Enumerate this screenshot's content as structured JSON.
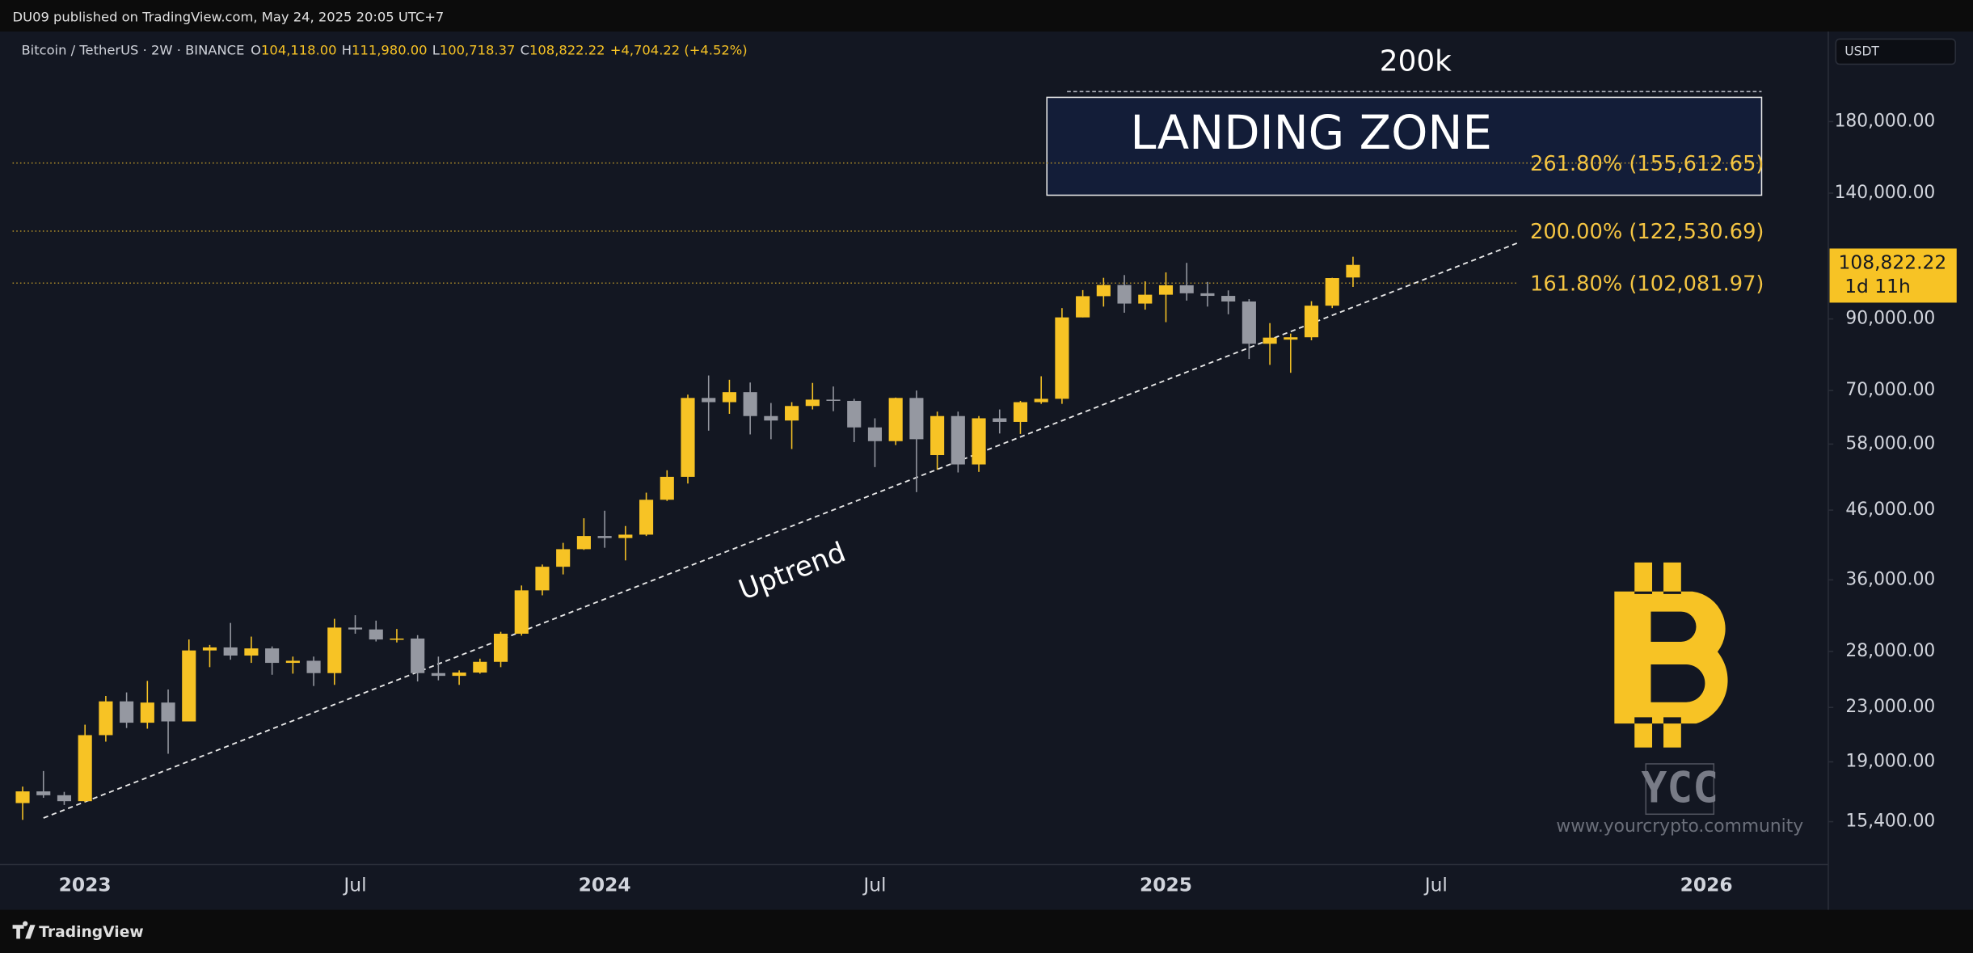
{
  "header": {
    "publisher": "DU09 published on TradingView.com, May 24, 2025 20:05 UTC+7",
    "brand": "TradingView"
  },
  "chart_data": {
    "type": "candlestick",
    "symbol": "Bitcoin / TetherUS · 2W · BINANCE",
    "ohlc_header": [
      [
        "O",
        "104,118.00"
      ],
      [
        "H",
        "111,980.00"
      ],
      [
        "L",
        "100,718.37"
      ],
      [
        "C",
        "108,822.22"
      ]
    ],
    "change": "+4,704.22 (+4.52%)",
    "currency": "USDT",
    "categories": [
      null,
      null,
      null,
      "2023",
      null,
      null,
      null,
      null,
      null,
      null,
      null,
      null,
      null,
      null,
      null,
      null,
      "Jul",
      null,
      null,
      null,
      null,
      null,
      null,
      null,
      null,
      null,
      null,
      null,
      "2024",
      null,
      null,
      null,
      null,
      null,
      null,
      null,
      null,
      null,
      null,
      null,
      null,
      "Jul",
      null,
      null,
      null,
      null,
      null,
      null,
      null,
      null,
      null,
      null,
      null,
      null,
      null,
      "2025",
      null,
      null,
      null,
      null,
      null,
      null,
      null,
      null,
      null,
      null,
      null,
      null,
      "Jul",
      null,
      null,
      null,
      null,
      null,
      null,
      null,
      null,
      null,
      null,
      null,
      null,
      "2026",
      null,
      null,
      null
    ],
    "open": [
      16440,
      17130,
      16900,
      16550,
      20870,
      23500,
      21800,
      23400,
      21900,
      28100,
      28400,
      27600,
      28300,
      26900,
      27100,
      25950,
      30450,
      30250,
      29200,
      29300,
      25950,
      25700,
      26000,
      27000,
      29800,
      34700,
      37700,
      40100,
      42000,
      41700,
      42200,
      47700,
      51700,
      68200,
      67200,
      69600,
      64000,
      63000,
      66300,
      67800,
      67500,
      61500,
      58600,
      68200,
      55800,
      64000,
      54000,
      63500,
      62700,
      67200,
      68000,
      90500,
      97500,
      101400,
      95000,
      98000,
      101300,
      98500,
      97600,
      95700,
      82500,
      83700,
      84400,
      94300,
      104118,
      null,
      null,
      null,
      null,
      null,
      null,
      null,
      null,
      null,
      null,
      null,
      null,
      null,
      null,
      null,
      null,
      null,
      null,
      null,
      null
    ],
    "high": [
      17420,
      18400,
      17100,
      21650,
      23950,
      24250,
      25250,
      24500,
      29200,
      28650,
      30950,
      29500,
      28500,
      27500,
      27500,
      31400,
      31800,
      31200,
      30300,
      29650,
      27500,
      26200,
      27300,
      30000,
      35300,
      38000,
      41000,
      44700,
      45900,
      43500,
      48900,
      52900,
      69000,
      73800,
      72700,
      72000,
      67000,
      67200,
      71900,
      71000,
      68000,
      63500,
      68300,
      70000,
      65000,
      65000,
      64000,
      65500,
      67500,
      73600,
      93500,
      99600,
      104000,
      105000,
      102700,
      106000,
      109600,
      102500,
      99500,
      96500,
      88700,
      85500,
      95800,
      104000,
      111980,
      null,
      null,
      null,
      null,
      null,
      null,
      null,
      null,
      null,
      null,
      null,
      null,
      null,
      null,
      null,
      null,
      null,
      null,
      null,
      null
    ],
    "low": [
      15500,
      16750,
      16330,
      16500,
      20400,
      21400,
      21350,
      19550,
      21900,
      26500,
      27200,
      26900,
      25800,
      25900,
      24800,
      24900,
      29800,
      29000,
      28900,
      25200,
      25300,
      24900,
      25900,
      26500,
      29600,
      34100,
      36700,
      40000,
      40300,
      38550,
      42000,
      47500,
      50500,
      60800,
      64500,
      60000,
      59000,
      57000,
      65500,
      65100,
      58400,
      53500,
      57800,
      49000,
      53000,
      52500,
      52600,
      60200,
      60100,
      66800,
      66800,
      90500,
      94000,
      92000,
      93000,
      89000,
      96000,
      94000,
      91500,
      78200,
      76600,
      74500,
      83500,
      93500,
      100718.37,
      null,
      null,
      null,
      null,
      null,
      null,
      null,
      null,
      null,
      null,
      null,
      null,
      null,
      null,
      null,
      null,
      null,
      null,
      null,
      null
    ],
    "close": [
      17130,
      16900,
      16550,
      20870,
      23500,
      21800,
      23400,
      21900,
      28100,
      28400,
      27600,
      28300,
      26900,
      27100,
      25950,
      30450,
      30250,
      29200,
      29300,
      25950,
      25700,
      26000,
      27000,
      29800,
      34700,
      37700,
      40100,
      42000,
      41700,
      42200,
      47700,
      51700,
      68200,
      67200,
      69600,
      64000,
      63000,
      66300,
      67800,
      67500,
      61500,
      58600,
      68200,
      59000,
      64000,
      54000,
      63500,
      62700,
      67200,
      68000,
      90500,
      97500,
      101400,
      95000,
      98000,
      101300,
      98500,
      97600,
      95700,
      82500,
      84300,
      84400,
      94300,
      103900,
      108822.22,
      null,
      null,
      null,
      null,
      null,
      null,
      null,
      null,
      null,
      null,
      null,
      null,
      null,
      null,
      null,
      null,
      null,
      null,
      null,
      null
    ],
    "up_color": "#f7c325",
    "down_color": "#9598a1",
    "log_scale": true,
    "grid": false,
    "ylim": [
      13250,
      247000
    ],
    "yticks": [
      {
        "value": 15400,
        "label": "15,400.00"
      },
      {
        "value": 19000,
        "label": "19,000.00"
      },
      {
        "value": 23000,
        "label": "23,000.00"
      },
      {
        "value": 28000,
        "label": "28,000.00"
      },
      {
        "value": 36000,
        "label": "36,000.00"
      },
      {
        "value": 46000,
        "label": "46,000.00"
      },
      {
        "value": 58000,
        "label": "58,000.00"
      },
      {
        "value": 70000,
        "label": "70,000.00"
      },
      {
        "value": 90000,
        "label": "90,000.00"
      },
      {
        "value": 140000,
        "label": "140,000.00"
      },
      {
        "value": 180000,
        "label": "180,000.00"
      }
    ],
    "last_price": {
      "value": 108822.22,
      "label": "108,822.22",
      "countdown": "1d 11h"
    },
    "levels": [
      {
        "value": 155612.65,
        "label": "261.80% (155,612.65)"
      },
      {
        "value": 122530.69,
        "label": "200.00% (122,530.69)"
      },
      {
        "value": 102081.97,
        "label": "161.80% (102,081.97)"
      }
    ],
    "zone": {
      "label": "LANDING ZONE",
      "low": 139000,
      "high": 196000
    },
    "target": {
      "value": 200000,
      "label": "200k"
    },
    "trendline": {
      "label": "Uptrend",
      "x": [
        1,
        72
      ],
      "y": [
        15600,
        117800
      ]
    },
    "watermark": {
      "logo": "YCC",
      "url": "www.yourcrypto.community"
    }
  }
}
